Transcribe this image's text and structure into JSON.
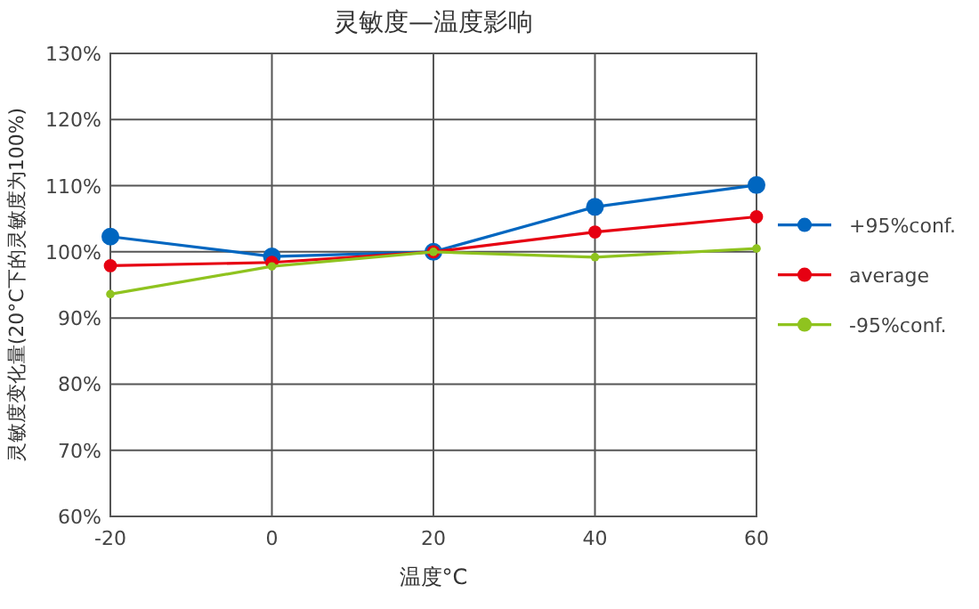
{
  "chart_data": {
    "type": "line",
    "title": "灵敏度—温度影响",
    "xlabel": "温度°C",
    "ylabel": "灵敏度变化量(20°C下的灵敏度为100%)",
    "x": [
      -20,
      0,
      20,
      40,
      60
    ],
    "xlim": [
      -20,
      60
    ],
    "xticks": [
      -20,
      0,
      20,
      40,
      60
    ],
    "ylim": [
      60,
      130
    ],
    "yticks": [
      {
        "value": 60,
        "label": "60%"
      },
      {
        "value": 70,
        "label": "70%"
      },
      {
        "value": 80,
        "label": "80%"
      },
      {
        "value": 90,
        "label": "90%"
      },
      {
        "value": 100,
        "label": "100%"
      },
      {
        "value": 110,
        "label": "110%"
      },
      {
        "value": 120,
        "label": "120%"
      },
      {
        "value": 130,
        "label": "130%"
      }
    ],
    "grid": true,
    "legend": "right",
    "marker": "circle",
    "line_style": "solid",
    "series": [
      {
        "name": "+95%conf.",
        "color": "#0066c0",
        "values": [
          102.3,
          99.3,
          100,
          106.8,
          110.1
        ]
      },
      {
        "name": "average",
        "color": "#e60012",
        "values": [
          97.9,
          98.4,
          100,
          103.0,
          105.3
        ]
      },
      {
        "name": "-95%conf.",
        "color": "#8fc31f",
        "values": [
          93.6,
          97.8,
          100,
          99.2,
          100.5
        ]
      }
    ]
  }
}
